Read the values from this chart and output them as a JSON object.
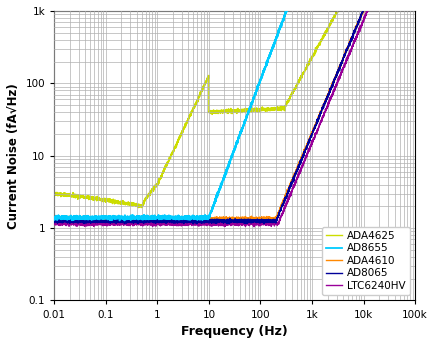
{
  "title": "",
  "xlabel": "Frequency (Hz)",
  "ylabel": "Current Noise (fA√Hz)",
  "xlim": [
    0.01,
    100000
  ],
  "ylim": [
    0.1,
    1000
  ],
  "background_color": "#ffffff",
  "grid_color": "#b0b0b0",
  "legend_colors": {
    "AD8655": "#00ccff",
    "ADA4610": "#ff8800",
    "LTC6240HV": "#990099",
    "ADA4625": "#ccdd00",
    "AD8065": "#000099"
  },
  "linewidth": 1.0,
  "noise_level": 0.028
}
